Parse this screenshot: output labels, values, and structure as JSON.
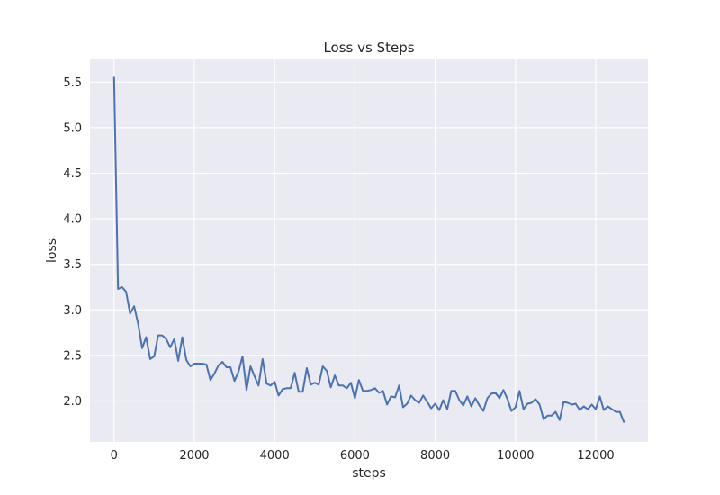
{
  "chart_data": {
    "type": "line",
    "title": "Loss vs Steps",
    "xlabel": "steps",
    "ylabel": "loss",
    "xlim": [
      -600,
      13300
    ],
    "ylim": [
      1.55,
      5.75
    ],
    "xticks": [
      0,
      2000,
      4000,
      6000,
      8000,
      10000,
      12000
    ],
    "yticks": [
      2.0,
      2.5,
      3.0,
      3.5,
      4.0,
      4.5,
      5.0,
      5.5
    ],
    "xtick_labels": [
      "0",
      "2000",
      "4000",
      "6000",
      "8000",
      "10000",
      "12000"
    ],
    "ytick_labels": [
      "2.0",
      "2.5",
      "3.0",
      "3.5",
      "4.0",
      "4.5",
      "5.0",
      "5.5"
    ],
    "grid": true,
    "colors": {
      "line": "#4c72b0",
      "plot_bg": "#eaeaf2",
      "grid": "#ffffff"
    },
    "series": [
      {
        "x": [
          0,
          100,
          200,
          300,
          400,
          500,
          600,
          700,
          800,
          900,
          1000,
          1100,
          1200,
          1300,
          1400,
          1500,
          1600,
          1700,
          1800,
          1900,
          2000,
          2100,
          2200,
          2300,
          2400,
          2500,
          2600,
          2700,
          2800,
          2900,
          3000,
          3100,
          3200,
          3300,
          3400,
          3500,
          3600,
          3700,
          3800,
          3900,
          4000,
          4100,
          4200,
          4300,
          4400,
          4500,
          4600,
          4700,
          4800,
          4900,
          5000,
          5100,
          5200,
          5300,
          5400,
          5500,
          5600,
          5700,
          5800,
          5900,
          6000,
          6100,
          6200,
          6300,
          6400,
          6500,
          6600,
          6700,
          6800,
          6900,
          7000,
          7100,
          7200,
          7300,
          7400,
          7500,
          7600,
          7700,
          7800,
          7900,
          8000,
          8100,
          8200,
          8300,
          8400,
          8500,
          8600,
          8700,
          8800,
          8900,
          9000,
          9100,
          9200,
          9300,
          9400,
          9500,
          9600,
          9700,
          9800,
          9900,
          10000,
          10100,
          10200,
          10300,
          10400,
          10500,
          10600,
          10700,
          10800,
          10900,
          11000,
          11100,
          11200,
          11300,
          11400,
          11500,
          11600,
          11700,
          11800,
          11900,
          12000,
          12100,
          12200,
          12300,
          12400,
          12500,
          12600,
          12700
        ],
        "y": [
          5.55,
          3.23,
          3.25,
          3.2,
          2.96,
          3.04,
          2.85,
          2.58,
          2.7,
          2.46,
          2.49,
          2.72,
          2.72,
          2.68,
          2.59,
          2.68,
          2.44,
          2.7,
          2.45,
          2.38,
          2.41,
          2.41,
          2.41,
          2.4,
          2.23,
          2.3,
          2.39,
          2.43,
          2.37,
          2.37,
          2.22,
          2.32,
          2.49,
          2.12,
          2.38,
          2.27,
          2.17,
          2.46,
          2.19,
          2.17,
          2.21,
          2.06,
          2.13,
          2.14,
          2.14,
          2.31,
          2.1,
          2.1,
          2.36,
          2.18,
          2.2,
          2.18,
          2.38,
          2.33,
          2.15,
          2.28,
          2.17,
          2.17,
          2.14,
          2.2,
          2.03,
          2.23,
          2.11,
          2.11,
          2.12,
          2.14,
          2.09,
          2.11,
          1.96,
          2.05,
          2.04,
          2.17,
          1.93,
          1.97,
          2.06,
          2.01,
          1.98,
          2.06,
          1.99,
          1.92,
          1.97,
          1.9,
          2.01,
          1.91,
          2.11,
          2.11,
          2.01,
          1.95,
          2.05,
          1.94,
          2.03,
          1.95,
          1.89,
          2.03,
          2.08,
          2.09,
          2.03,
          2.12,
          2.02,
          1.89,
          1.93,
          2.11,
          1.91,
          1.97,
          1.98,
          2.02,
          1.96,
          1.8,
          1.84,
          1.84,
          1.88,
          1.79,
          1.99,
          1.98,
          1.96,
          1.97,
          1.9,
          1.94,
          1.91,
          1.96,
          1.91,
          2.05,
          1.9,
          1.94,
          1.91,
          1.88,
          1.88,
          1.77
        ]
      }
    ]
  }
}
